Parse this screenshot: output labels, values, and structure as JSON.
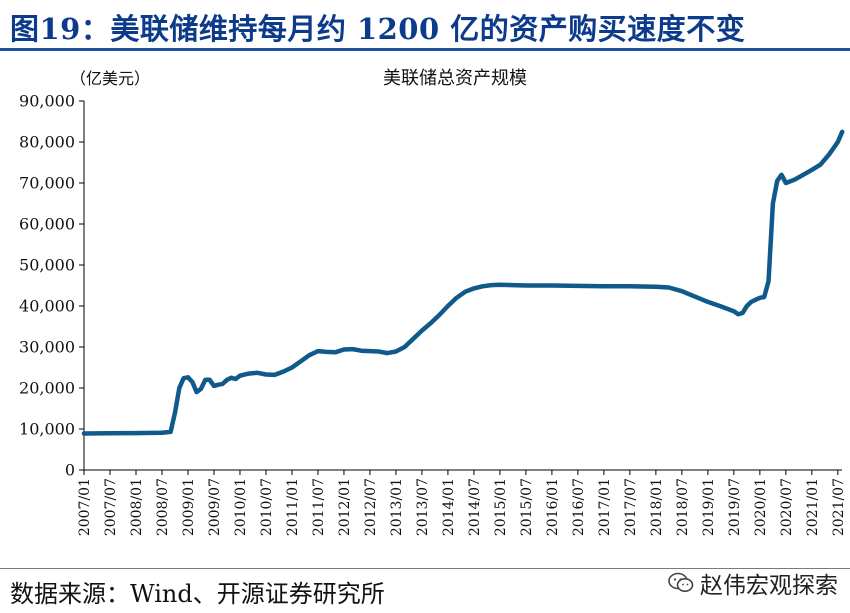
{
  "figure_title": "图19：美联储维持每月约 1200 亿的资产购买速度不变",
  "source_text": "数据来源：Wind、开源证券研究所",
  "watermark_text": "赵伟宏观探索",
  "watermark_icon": "wechat-logo-icon",
  "colors": {
    "title": "#0d3b8c",
    "rule": "#1f4e9c",
    "series": "#0f5a8a",
    "axis": "#000000"
  },
  "chart_data": {
    "type": "line",
    "title": "美联储总资产规模",
    "ylabel": "（亿美元）",
    "xlabel": "",
    "ylim": [
      0,
      90000
    ],
    "yticks": [
      0,
      10000,
      20000,
      30000,
      40000,
      50000,
      60000,
      70000,
      80000,
      90000
    ],
    "ytick_labels": [
      "0",
      "10,000",
      "20,000",
      "30,000",
      "40,000",
      "50,000",
      "60,000",
      "70,000",
      "80,000",
      "90,000"
    ],
    "xtick_labels": [
      "2007/01",
      "2007/07",
      "2008/01",
      "2008/07",
      "2009/01",
      "2009/07",
      "2010/01",
      "2010/07",
      "2011/01",
      "2011/07",
      "2012/01",
      "2012/07",
      "2013/01",
      "2013/07",
      "2014/01",
      "2014/07",
      "2015/01",
      "2015/07",
      "2016/01",
      "2016/07",
      "2017/01",
      "2017/07",
      "2018/01",
      "2018/07",
      "2019/01",
      "2019/07",
      "2020/01",
      "2020/07",
      "2021/01",
      "2021/07"
    ],
    "grid": false,
    "legend": "none",
    "series": [
      {
        "x": [
          "2007/01",
          "2007/07",
          "2008/01",
          "2008/07",
          "2008/09",
          "2008/10",
          "2008/11",
          "2008/12",
          "2009/01",
          "2009/02",
          "2009/03",
          "2009/04",
          "2009/05",
          "2009/06",
          "2009/07",
          "2009/08",
          "2009/09",
          "2009/10",
          "2009/11",
          "2009/12",
          "2010/01",
          "2010/03",
          "2010/05",
          "2010/07",
          "2010/09",
          "2010/11",
          "2011/01",
          "2011/03",
          "2011/05",
          "2011/07",
          "2011/09",
          "2011/11",
          "2012/01",
          "2012/03",
          "2012/05",
          "2012/07",
          "2012/09",
          "2012/11",
          "2013/01",
          "2013/03",
          "2013/05",
          "2013/07",
          "2013/09",
          "2013/11",
          "2014/01",
          "2014/03",
          "2014/05",
          "2014/07",
          "2014/09",
          "2014/11",
          "2015/01",
          "2015/07",
          "2016/01",
          "2016/07",
          "2017/01",
          "2017/07",
          "2018/01",
          "2018/04",
          "2018/07",
          "2018/10",
          "2019/01",
          "2019/04",
          "2019/07",
          "2019/08",
          "2019/09",
          "2019/10",
          "2019/11",
          "2019/12",
          "2020/01",
          "2020/02",
          "2020/03",
          "2020/04",
          "2020/05",
          "2020/06",
          "2020/07",
          "2020/09",
          "2020/11",
          "2021/01",
          "2021/03",
          "2021/05",
          "2021/07",
          "2021/08"
        ],
        "values": [
          8900,
          8950,
          9000,
          9100,
          9300,
          14000,
          20000,
          22400,
          22600,
          21500,
          19000,
          19800,
          22000,
          22000,
          20500,
          20800,
          21000,
          22000,
          22500,
          22200,
          23000,
          23500,
          23700,
          23300,
          23200,
          24000,
          25000,
          26500,
          28000,
          29000,
          28800,
          28700,
          29400,
          29500,
          29100,
          29000,
          28900,
          28500,
          28900,
          30000,
          32000,
          34000,
          35800,
          37800,
          40000,
          42000,
          43500,
          44300,
          44800,
          45100,
          45200,
          45000,
          45000,
          44900,
          44800,
          44800,
          44700,
          44500,
          43600,
          42300,
          41000,
          39900,
          38700,
          38000,
          38300,
          40000,
          41000,
          41500,
          42000,
          42200,
          46000,
          65000,
          70500,
          72000,
          70000,
          70800,
          72000,
          73200,
          74500,
          77000,
          80000,
          82500
        ]
      }
    ]
  }
}
